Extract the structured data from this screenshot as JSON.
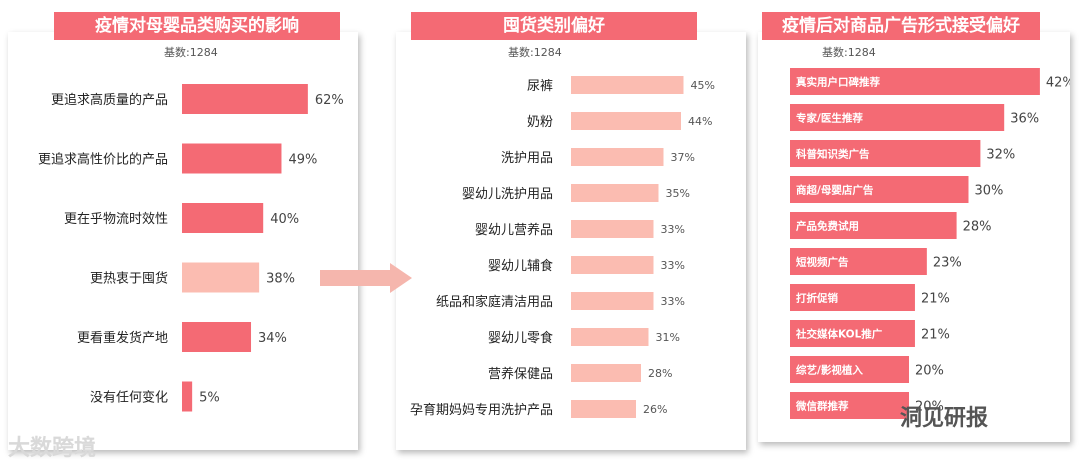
{
  "colors": {
    "accent": "#f46a74",
    "bar_dark": "#f46a74",
    "bar_light": "#fbbcb1",
    "arrow": "#f5b6ad"
  },
  "watermark_left": "大数跨境",
  "watermark_right": "洞见研报",
  "chart_data": [
    {
      "type": "bar",
      "orientation": "horizontal",
      "title": "疫情对母婴品类购买的影响",
      "base_label": "基数:1284",
      "categories": [
        "更追求高质量的产品",
        "更追求高性价比的产品",
        "更在乎物流时效性",
        "更热衷于囤货",
        "更看重发货产地",
        "没有任何变化"
      ],
      "values": [
        62,
        49,
        40,
        38,
        34,
        5
      ],
      "value_labels": [
        "62%",
        "49%",
        "40%",
        "38%",
        "34%",
        "5%"
      ],
      "highlight": [
        false,
        false,
        false,
        true,
        false,
        false
      ]
    },
    {
      "type": "bar",
      "orientation": "horizontal",
      "title": "囤货类别偏好",
      "base_label": "基数:1284",
      "categories": [
        "尿裤",
        "奶粉",
        "洗护用品",
        "婴幼儿洗护用品",
        "婴幼儿营养品",
        "婴幼儿辅食",
        "纸品和家庭清洁用品",
        "婴幼儿零食",
        "营养保健品",
        "孕育期妈妈专用洗护产品"
      ],
      "values": [
        45,
        44,
        37,
        35,
        33,
        33,
        33,
        31,
        28,
        26
      ],
      "value_labels": [
        "45%",
        "44%",
        "37%",
        "35%",
        "33%",
        "33%",
        "33%",
        "31%",
        "28%",
        "26%"
      ]
    },
    {
      "type": "bar",
      "orientation": "horizontal",
      "title": "疫情后对商品广告形式接受偏好",
      "base_label": "基数:1284",
      "categories": [
        "真实用户口碑推荐",
        "专家/医生推荐",
        "科普知识类广告",
        "商超/母婴店广告",
        "产品免费试用",
        "短视频广告",
        "打折促销",
        "社交媒体KOL推广",
        "综艺/影视植入",
        "微信群推荐"
      ],
      "values": [
        42,
        36,
        32,
        30,
        28,
        23,
        21,
        21,
        20,
        20
      ],
      "value_labels": [
        "42%",
        "36%",
        "32%",
        "30%",
        "28%",
        "23%",
        "21%",
        "21%",
        "20%",
        "20%"
      ]
    }
  ]
}
